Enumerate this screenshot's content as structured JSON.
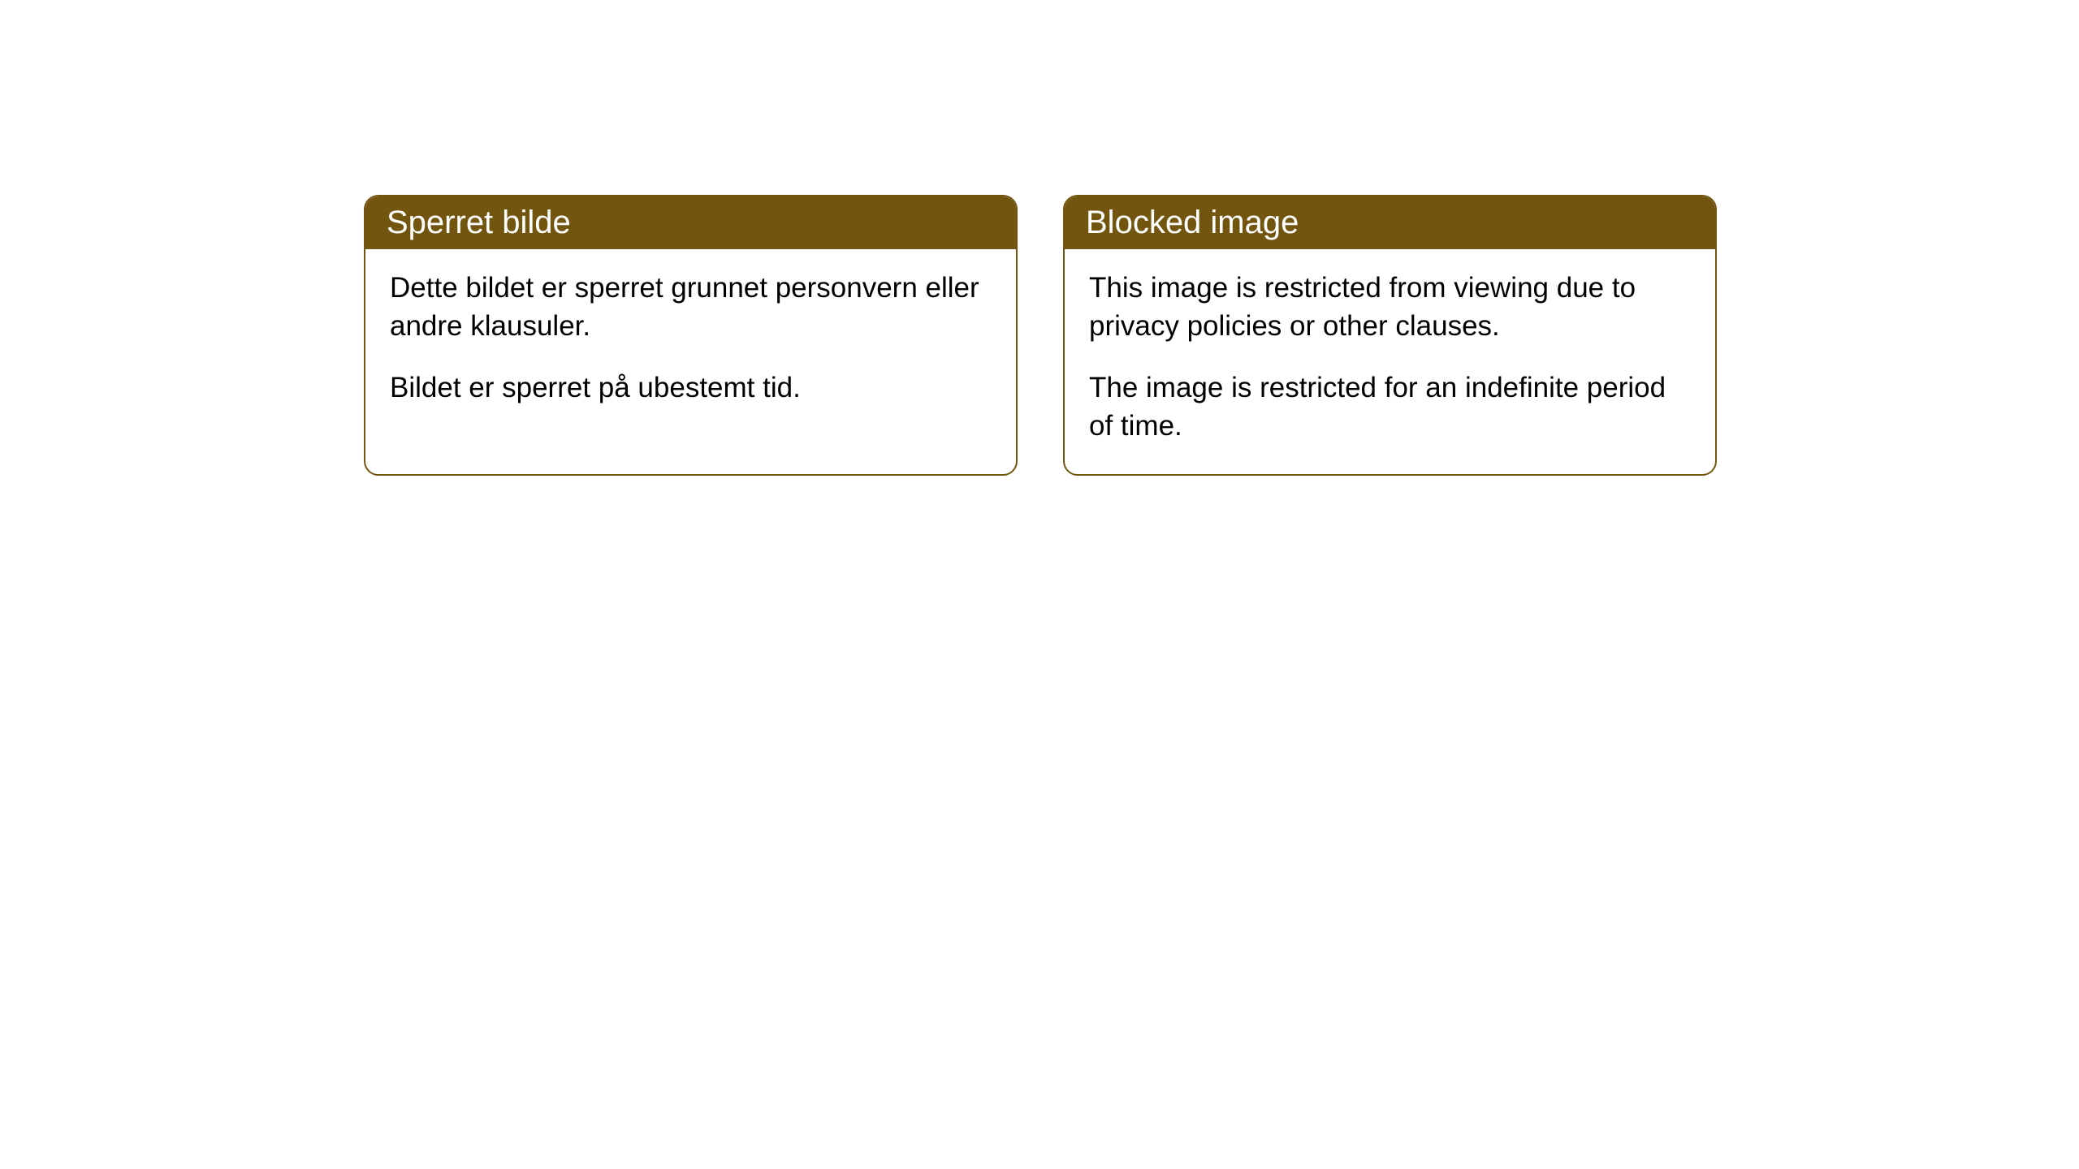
{
  "cards": [
    {
      "title": "Sperret bilde",
      "paragraph1": "Dette bildet er sperret grunnet personvern eller andre klausuler.",
      "paragraph2": "Bildet er sperret på ubestemt tid."
    },
    {
      "title": "Blocked image",
      "paragraph1": "This image is restricted from viewing due to privacy policies or other clauses.",
      "paragraph2": "The image is restricted for an indefinite period of time."
    }
  ],
  "style": {
    "header_bg_color": "#725610",
    "header_text_color": "#ffffff",
    "border_color": "#725610",
    "body_bg_color": "#ffffff",
    "body_text_color": "#000000",
    "border_radius": 18,
    "title_fontsize": 40,
    "body_fontsize": 35
  }
}
